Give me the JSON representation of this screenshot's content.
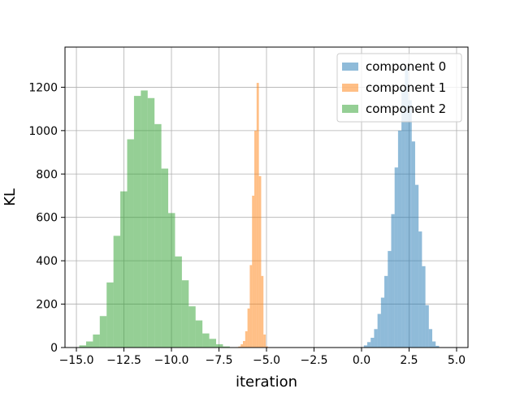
{
  "chart_data": {
    "type": "bar",
    "xlabel": "iteration",
    "ylabel": "KL",
    "xlim": [
      -15.6,
      5.6
    ],
    "ylim": [
      0,
      1385
    ],
    "xticks": [
      -15.0,
      -12.5,
      -10.0,
      -7.5,
      -5.0,
      -2.5,
      0.0,
      2.5,
      5.0
    ],
    "xtick_labels": [
      "−15.0",
      "−12.5",
      "−10.0",
      "−7.5",
      "−5.0",
      "−2.5",
      "0.0",
      "2.5",
      "5.0"
    ],
    "yticks": [
      0,
      200,
      400,
      600,
      800,
      1000,
      1200
    ],
    "ytick_labels": [
      "0",
      "200",
      "400",
      "600",
      "800",
      "1000",
      "1200"
    ],
    "grid": true,
    "legend_position": "top-right",
    "series": [
      {
        "name": "component 0",
        "color": "#1f77b4",
        "alpha": 0.5,
        "bins": [
          {
            "x0": -0.06,
            "x1": 0.12,
            "count": 2
          },
          {
            "x0": 0.12,
            "x1": 0.3,
            "count": 10
          },
          {
            "x0": 0.3,
            "x1": 0.48,
            "count": 25
          },
          {
            "x0": 0.48,
            "x1": 0.66,
            "count": 45
          },
          {
            "x0": 0.66,
            "x1": 0.84,
            "count": 85
          },
          {
            "x0": 0.84,
            "x1": 1.02,
            "count": 155
          },
          {
            "x0": 1.02,
            "x1": 1.2,
            "count": 230
          },
          {
            "x0": 1.2,
            "x1": 1.38,
            "count": 330
          },
          {
            "x0": 1.38,
            "x1": 1.56,
            "count": 445
          },
          {
            "x0": 1.56,
            "x1": 1.74,
            "count": 615
          },
          {
            "x0": 1.74,
            "x1": 1.92,
            "count": 830
          },
          {
            "x0": 1.92,
            "x1": 2.1,
            "count": 1000
          },
          {
            "x0": 2.1,
            "x1": 2.28,
            "count": 1190
          },
          {
            "x0": 2.28,
            "x1": 2.46,
            "count": 1290
          },
          {
            "x0": 2.46,
            "x1": 2.64,
            "count": 1140
          },
          {
            "x0": 2.64,
            "x1": 2.82,
            "count": 950
          },
          {
            "x0": 2.82,
            "x1": 3.0,
            "count": 750
          },
          {
            "x0": 3.0,
            "x1": 3.18,
            "count": 535
          },
          {
            "x0": 3.18,
            "x1": 3.36,
            "count": 375
          },
          {
            "x0": 3.36,
            "x1": 3.54,
            "count": 195
          },
          {
            "x0": 3.54,
            "x1": 3.72,
            "count": 85
          },
          {
            "x0": 3.72,
            "x1": 3.9,
            "count": 28
          },
          {
            "x0": 3.9,
            "x1": 4.08,
            "count": 8
          }
        ]
      },
      {
        "name": "component 1",
        "color": "#ff7f0e",
        "alpha": 0.5,
        "bins": [
          {
            "x0": -6.6,
            "x1": -6.48,
            "count": 2
          },
          {
            "x0": -6.48,
            "x1": -6.36,
            "count": 5
          },
          {
            "x0": -6.36,
            "x1": -6.24,
            "count": 15
          },
          {
            "x0": -6.24,
            "x1": -6.12,
            "count": 30
          },
          {
            "x0": -6.12,
            "x1": -6.0,
            "count": 75
          },
          {
            "x0": -6.0,
            "x1": -5.88,
            "count": 180
          },
          {
            "x0": -5.88,
            "x1": -5.76,
            "count": 380
          },
          {
            "x0": -5.76,
            "x1": -5.64,
            "count": 700
          },
          {
            "x0": -5.64,
            "x1": -5.52,
            "count": 1000
          },
          {
            "x0": -5.52,
            "x1": -5.4,
            "count": 1220
          },
          {
            "x0": -5.4,
            "x1": -5.28,
            "count": 790
          },
          {
            "x0": -5.28,
            "x1": -5.16,
            "count": 330
          },
          {
            "x0": -5.16,
            "x1": -5.04,
            "count": 60
          },
          {
            "x0": -5.04,
            "x1": -4.92,
            "count": 5
          }
        ]
      },
      {
        "name": "component 2",
        "color": "#2ca02c",
        "alpha": 0.5,
        "bins": [
          {
            "x0": -14.85,
            "x1": -14.49,
            "count": 10
          },
          {
            "x0": -14.49,
            "x1": -14.13,
            "count": 28
          },
          {
            "x0": -14.13,
            "x1": -13.77,
            "count": 60
          },
          {
            "x0": -13.77,
            "x1": -13.41,
            "count": 145
          },
          {
            "x0": -13.41,
            "x1": -13.05,
            "count": 300
          },
          {
            "x0": -13.05,
            "x1": -12.69,
            "count": 515
          },
          {
            "x0": -12.69,
            "x1": -12.33,
            "count": 720
          },
          {
            "x0": -12.33,
            "x1": -11.97,
            "count": 960
          },
          {
            "x0": -11.97,
            "x1": -11.61,
            "count": 1160
          },
          {
            "x0": -11.61,
            "x1": -11.25,
            "count": 1185
          },
          {
            "x0": -11.25,
            "x1": -10.89,
            "count": 1150
          },
          {
            "x0": -10.89,
            "x1": -10.53,
            "count": 1030
          },
          {
            "x0": -10.53,
            "x1": -10.17,
            "count": 825
          },
          {
            "x0": -10.17,
            "x1": -9.81,
            "count": 620
          },
          {
            "x0": -9.81,
            "x1": -9.45,
            "count": 420
          },
          {
            "x0": -9.45,
            "x1": -9.09,
            "count": 310
          },
          {
            "x0": -9.09,
            "x1": -8.73,
            "count": 190
          },
          {
            "x0": -8.73,
            "x1": -8.37,
            "count": 125
          },
          {
            "x0": -8.37,
            "x1": -8.01,
            "count": 65
          },
          {
            "x0": -8.01,
            "x1": -7.65,
            "count": 40
          },
          {
            "x0": -7.65,
            "x1": -7.29,
            "count": 15
          },
          {
            "x0": -7.29,
            "x1": -6.93,
            "count": 5
          }
        ]
      }
    ]
  }
}
